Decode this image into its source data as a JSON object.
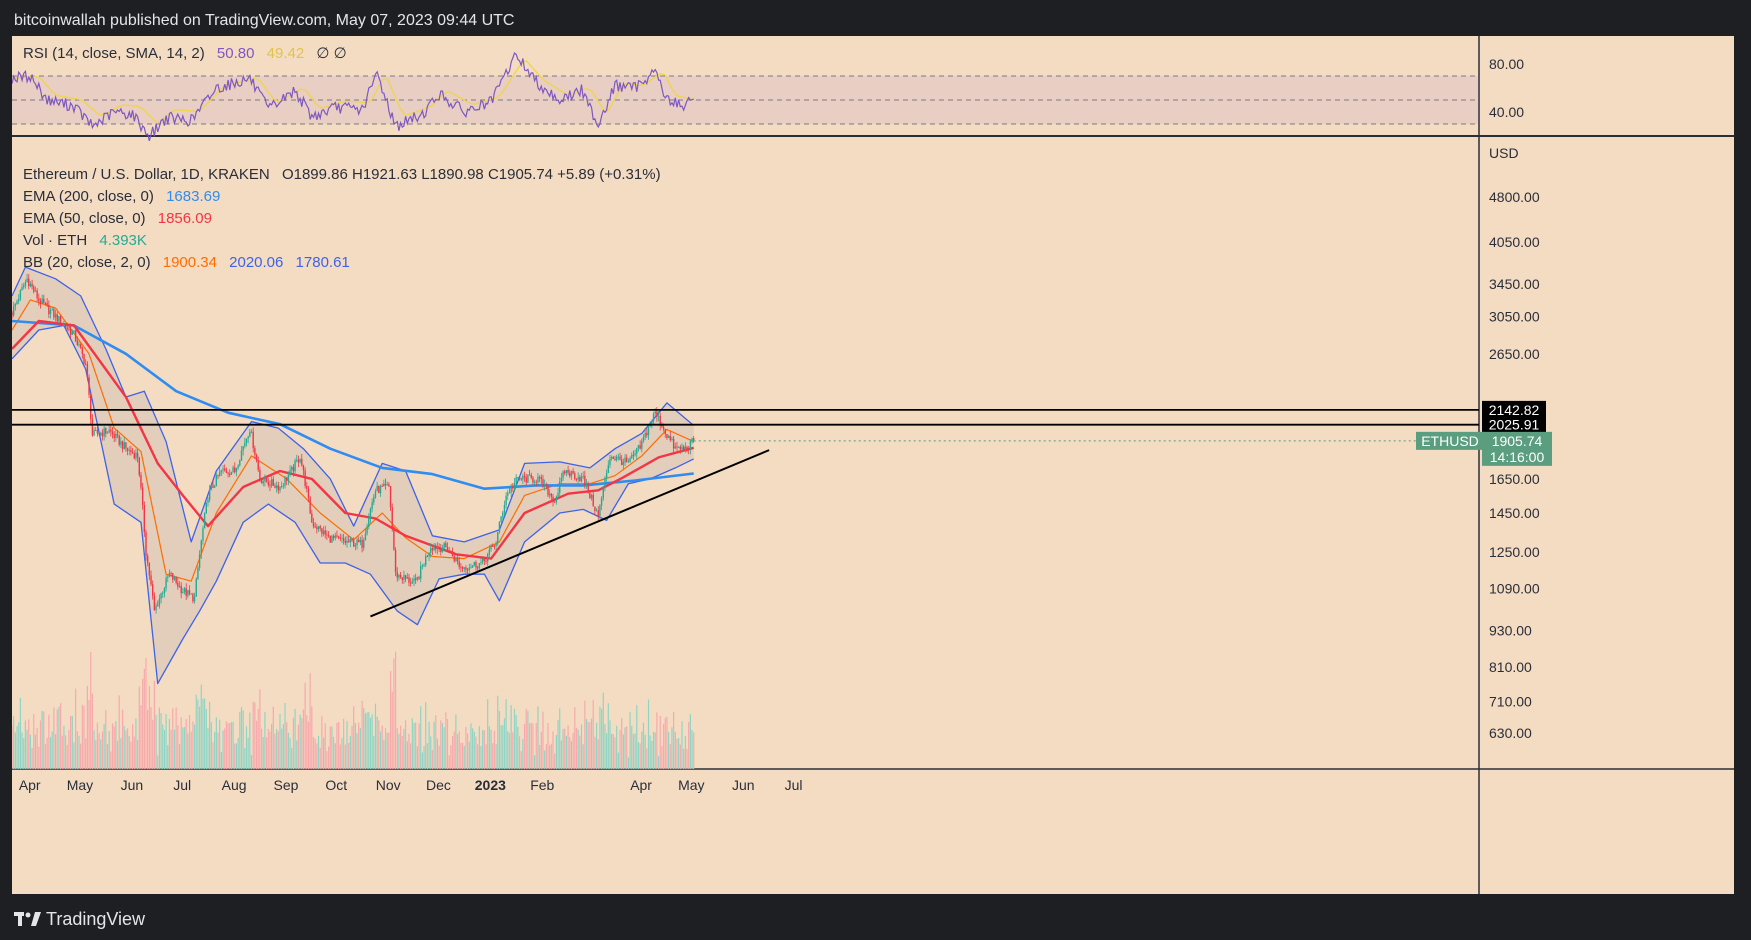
{
  "header": {
    "publisher": "bitcoinwallah published on TradingView.com, May 07, 2023 09:44 UTC"
  },
  "footer": {
    "brand": "TradingView"
  },
  "colors": {
    "background": "#f4dcc3",
    "up": "#22ab94",
    "down": "#f23645",
    "ema200": "#2f8cf0",
    "ema50": "#f23645",
    "bb_basis": "#ff6d00",
    "bb_band": "#3d63e8",
    "rsi": "#7e57c2",
    "rsi_sma": "#f0d44a",
    "volume_up": "#8fd4c4",
    "volume_down": "#f7a9ab",
    "resistance": "#000000",
    "trendline": "#000000",
    "last_price_tag": "#5a9d7f"
  },
  "rsi": {
    "label": "RSI (14, close, SMA, 14, 2)",
    "value": "50.80",
    "sma_value": "49.42",
    "extra": "∅ ∅",
    "axis_ticks": [
      "80.00",
      "40.00"
    ]
  },
  "legend": {
    "symbol": "Ethereum / U.S. Dollar, 1D, KRAKEN",
    "ohlc": "O1899.86 H1921.63 L1890.98 C1905.74 +5.89 (+0.31%)",
    "ema200_label": "EMA (200, close, 0)",
    "ema200_value": "1683.69",
    "ema50_label": "EMA (50, close, 0)",
    "ema50_value": "1856.09",
    "vol_label": "Vol · ETH",
    "vol_value": "4.393K",
    "bb_label": "BB (20, close, 2, 0)",
    "bb_basis": "1900.34",
    "bb_upper": "2020.06",
    "bb_lower": "1780.61"
  },
  "chart_data": {
    "type": "candlestick",
    "currency": "USD",
    "y_scale": "log",
    "ylim": [
      550,
      6000
    ],
    "y_ticks": [
      "4800.00",
      "4050.00",
      "3450.00",
      "3050.00",
      "2650.00",
      "1650.00",
      "1450.00",
      "1250.00",
      "1090.00",
      "930.00",
      "810.00",
      "710.00",
      "630.00"
    ],
    "x_ticks": [
      "Apr",
      "May",
      "Jun",
      "Jul",
      "Aug",
      "Sep",
      "Oct",
      "Nov",
      "Dec",
      "2023",
      "Feb",
      "Apr",
      "May",
      "Jun",
      "Jul"
    ],
    "horizontal_levels": [
      {
        "label": "2142.82",
        "value": 2142.82
      },
      {
        "label": "2025.91",
        "value": 2025.91
      }
    ],
    "last_price": {
      "symbol": "ETHUSD",
      "value": "1905.74",
      "countdown": "14:16:00"
    },
    "trendline": {
      "from": [
        "2022-10-25",
        980
      ],
      "to": [
        "2023-06-20",
        1840
      ]
    },
    "series": [
      {
        "name": "ETHUSD close (approx.)",
        "points": [
          [
            "2022-03-25",
            3100
          ],
          [
            "2022-04-03",
            3520
          ],
          [
            "2022-04-10",
            3250
          ],
          [
            "2022-04-20",
            3050
          ],
          [
            "2022-05-01",
            2850
          ],
          [
            "2022-05-08",
            2550
          ],
          [
            "2022-05-12",
            1950
          ],
          [
            "2022-05-22",
            1980
          ],
          [
            "2022-06-01",
            1850
          ],
          [
            "2022-06-08",
            1800
          ],
          [
            "2022-06-13",
            1250
          ],
          [
            "2022-06-18",
            1000
          ],
          [
            "2022-06-27",
            1150
          ],
          [
            "2022-07-05",
            1080
          ],
          [
            "2022-07-12",
            1050
          ],
          [
            "2022-07-20",
            1550
          ],
          [
            "2022-07-28",
            1700
          ],
          [
            "2022-08-05",
            1700
          ],
          [
            "2022-08-14",
            2000
          ],
          [
            "2022-08-20",
            1650
          ],
          [
            "2022-09-01",
            1600
          ],
          [
            "2022-09-08",
            1700
          ],
          [
            "2022-09-13",
            1800
          ],
          [
            "2022-09-20",
            1400
          ],
          [
            "2022-09-30",
            1320
          ],
          [
            "2022-10-10",
            1300
          ],
          [
            "2022-10-20",
            1290
          ],
          [
            "2022-10-28",
            1580
          ],
          [
            "2022-11-05",
            1600
          ],
          [
            "2022-11-09",
            1150
          ],
          [
            "2022-11-21",
            1110
          ],
          [
            "2022-11-30",
            1280
          ],
          [
            "2022-12-10",
            1270
          ],
          [
            "2022-12-18",
            1180
          ],
          [
            "2022-12-31",
            1200
          ],
          [
            "2023-01-08",
            1300
          ],
          [
            "2023-01-14",
            1550
          ],
          [
            "2023-01-21",
            1650
          ],
          [
            "2023-02-02",
            1650
          ],
          [
            "2023-02-12",
            1520
          ],
          [
            "2023-02-18",
            1700
          ],
          [
            "2023-03-01",
            1650
          ],
          [
            "2023-03-10",
            1430
          ],
          [
            "2023-03-17",
            1800
          ],
          [
            "2023-03-28",
            1750
          ],
          [
            "2023-04-04",
            1860
          ],
          [
            "2023-04-13",
            2120
          ],
          [
            "2023-04-20",
            1950
          ],
          [
            "2023-04-25",
            1850
          ],
          [
            "2023-05-01",
            1850
          ],
          [
            "2023-05-06",
            1905
          ]
        ]
      },
      {
        "name": "EMA (200)",
        "points": [
          [
            "2022-03-25",
            3000
          ],
          [
            "2022-05-01",
            2950
          ],
          [
            "2022-06-01",
            2650
          ],
          [
            "2022-07-01",
            2300
          ],
          [
            "2022-08-01",
            2120
          ],
          [
            "2022-09-01",
            2030
          ],
          [
            "2022-10-01",
            1850
          ],
          [
            "2022-11-01",
            1720
          ],
          [
            "2022-12-01",
            1680
          ],
          [
            "2023-01-01",
            1590
          ],
          [
            "2023-02-01",
            1610
          ],
          [
            "2023-03-01",
            1610
          ],
          [
            "2023-04-01",
            1640
          ],
          [
            "2023-05-06",
            1684
          ]
        ]
      },
      {
        "name": "EMA (50)",
        "points": [
          [
            "2022-03-25",
            2700
          ],
          [
            "2022-04-10",
            3000
          ],
          [
            "2022-05-01",
            2950
          ],
          [
            "2022-06-01",
            2250
          ],
          [
            "2022-06-20",
            1750
          ],
          [
            "2022-07-05",
            1550
          ],
          [
            "2022-07-20",
            1380
          ],
          [
            "2022-08-10",
            1600
          ],
          [
            "2022-09-01",
            1700
          ],
          [
            "2022-09-20",
            1650
          ],
          [
            "2022-10-10",
            1450
          ],
          [
            "2022-10-28",
            1420
          ],
          [
            "2022-11-15",
            1330
          ],
          [
            "2022-12-15",
            1240
          ],
          [
            "2023-01-05",
            1220
          ],
          [
            "2023-01-25",
            1450
          ],
          [
            "2023-02-20",
            1560
          ],
          [
            "2023-03-10",
            1580
          ],
          [
            "2023-03-25",
            1660
          ],
          [
            "2023-04-15",
            1790
          ],
          [
            "2023-05-06",
            1856
          ]
        ]
      },
      {
        "name": "BB basis (20)",
        "points": [
          [
            "2022-03-25",
            2900
          ],
          [
            "2022-04-05",
            3250
          ],
          [
            "2022-04-20",
            3150
          ],
          [
            "2022-05-10",
            2650
          ],
          [
            "2022-05-25",
            2000
          ],
          [
            "2022-06-10",
            1830
          ],
          [
            "2022-06-25",
            1150
          ],
          [
            "2022-07-10",
            1120
          ],
          [
            "2022-07-25",
            1450
          ],
          [
            "2022-08-15",
            1800
          ],
          [
            "2022-09-05",
            1650
          ],
          [
            "2022-09-25",
            1450
          ],
          [
            "2022-10-15",
            1310
          ],
          [
            "2022-11-01",
            1450
          ],
          [
            "2022-11-15",
            1320
          ],
          [
            "2022-12-01",
            1230
          ],
          [
            "2022-12-20",
            1220
          ],
          [
            "2023-01-10",
            1300
          ],
          [
            "2023-01-25",
            1550
          ],
          [
            "2023-02-15",
            1620
          ],
          [
            "2023-03-05",
            1620
          ],
          [
            "2023-03-20",
            1670
          ],
          [
            "2023-04-05",
            1800
          ],
          [
            "2023-04-20",
            1990
          ],
          [
            "2023-05-06",
            1900
          ]
        ]
      },
      {
        "name": "BB upper (20)",
        "points": [
          [
            "2022-03-25",
            3300
          ],
          [
            "2022-04-02",
            3680
          ],
          [
            "2022-04-20",
            3520
          ],
          [
            "2022-05-05",
            3300
          ],
          [
            "2022-05-20",
            2700
          ],
          [
            "2022-06-01",
            2250
          ],
          [
            "2022-06-12",
            2300
          ],
          [
            "2022-06-25",
            1900
          ],
          [
            "2022-07-10",
            1300
          ],
          [
            "2022-07-25",
            1700
          ],
          [
            "2022-08-15",
            2050
          ],
          [
            "2022-08-31",
            2000
          ],
          [
            "2022-09-15",
            1850
          ],
          [
            "2022-10-01",
            1650
          ],
          [
            "2022-10-15",
            1380
          ],
          [
            "2022-11-01",
            1750
          ],
          [
            "2022-11-15",
            1700
          ],
          [
            "2022-12-01",
            1330
          ],
          [
            "2022-12-20",
            1300
          ],
          [
            "2023-01-10",
            1360
          ],
          [
            "2023-01-25",
            1750
          ],
          [
            "2023-02-15",
            1760
          ],
          [
            "2023-03-05",
            1720
          ],
          [
            "2023-03-20",
            1850
          ],
          [
            "2023-04-05",
            1960
          ],
          [
            "2023-04-20",
            2200
          ],
          [
            "2023-05-06",
            2020
          ]
        ]
      },
      {
        "name": "BB lower (20)",
        "points": [
          [
            "2022-03-25",
            2600
          ],
          [
            "2022-04-10",
            2900
          ],
          [
            "2022-04-25",
            2950
          ],
          [
            "2022-05-08",
            2500
          ],
          [
            "2022-05-25",
            1500
          ],
          [
            "2022-06-10",
            1400
          ],
          [
            "2022-06-20",
            760
          ],
          [
            "2022-07-05",
            900
          ],
          [
            "2022-07-15",
            1000
          ],
          [
            "2022-07-25",
            1120
          ],
          [
            "2022-08-10",
            1400
          ],
          [
            "2022-08-25",
            1500
          ],
          [
            "2022-09-10",
            1400
          ],
          [
            "2022-09-25",
            1200
          ],
          [
            "2022-10-10",
            1200
          ],
          [
            "2022-10-25",
            1150
          ],
          [
            "2022-11-10",
            1000
          ],
          [
            "2022-11-22",
            950
          ],
          [
            "2022-12-05",
            1130
          ],
          [
            "2022-12-20",
            1150
          ],
          [
            "2023-01-01",
            1150
          ],
          [
            "2023-01-10",
            1040
          ],
          [
            "2023-01-25",
            1300
          ],
          [
            "2023-02-15",
            1450
          ],
          [
            "2023-03-01",
            1470
          ],
          [
            "2023-03-15",
            1410
          ],
          [
            "2023-03-28",
            1620
          ],
          [
            "2023-04-10",
            1650
          ],
          [
            "2023-04-25",
            1720
          ],
          [
            "2023-05-06",
            1780
          ]
        ]
      }
    ],
    "rsi_series": {
      "name": "RSI (14)",
      "points": [
        [
          "2022-03-25",
          68
        ],
        [
          "2022-04-05",
          70
        ],
        [
          "2022-04-15",
          50
        ],
        [
          "2022-05-01",
          45
        ],
        [
          "2022-05-12",
          28
        ],
        [
          "2022-05-25",
          40
        ],
        [
          "2022-06-05",
          38
        ],
        [
          "2022-06-15",
          20
        ],
        [
          "2022-06-25",
          35
        ],
        [
          "2022-07-10",
          33
        ],
        [
          "2022-07-25",
          60
        ],
        [
          "2022-08-14",
          68
        ],
        [
          "2022-08-25",
          42
        ],
        [
          "2022-09-10",
          58
        ],
        [
          "2022-09-20",
          36
        ],
        [
          "2022-10-05",
          44
        ],
        [
          "2022-10-20",
          42
        ],
        [
          "2022-10-29",
          72
        ],
        [
          "2022-11-09",
          28
        ],
        [
          "2022-11-25",
          38
        ],
        [
          "2022-12-05",
          55
        ],
        [
          "2022-12-20",
          40
        ],
        [
          "2023-01-05",
          48
        ],
        [
          "2023-01-20",
          88
        ],
        [
          "2023-02-01",
          65
        ],
        [
          "2023-02-15",
          50
        ],
        [
          "2023-02-28",
          58
        ],
        [
          "2023-03-10",
          30
        ],
        [
          "2023-03-20",
          62
        ],
        [
          "2023-04-01",
          60
        ],
        [
          "2023-04-13",
          75
        ],
        [
          "2023-04-20",
          50
        ],
        [
          "2023-05-01",
          45
        ],
        [
          "2023-05-06",
          51
        ]
      ]
    }
  }
}
